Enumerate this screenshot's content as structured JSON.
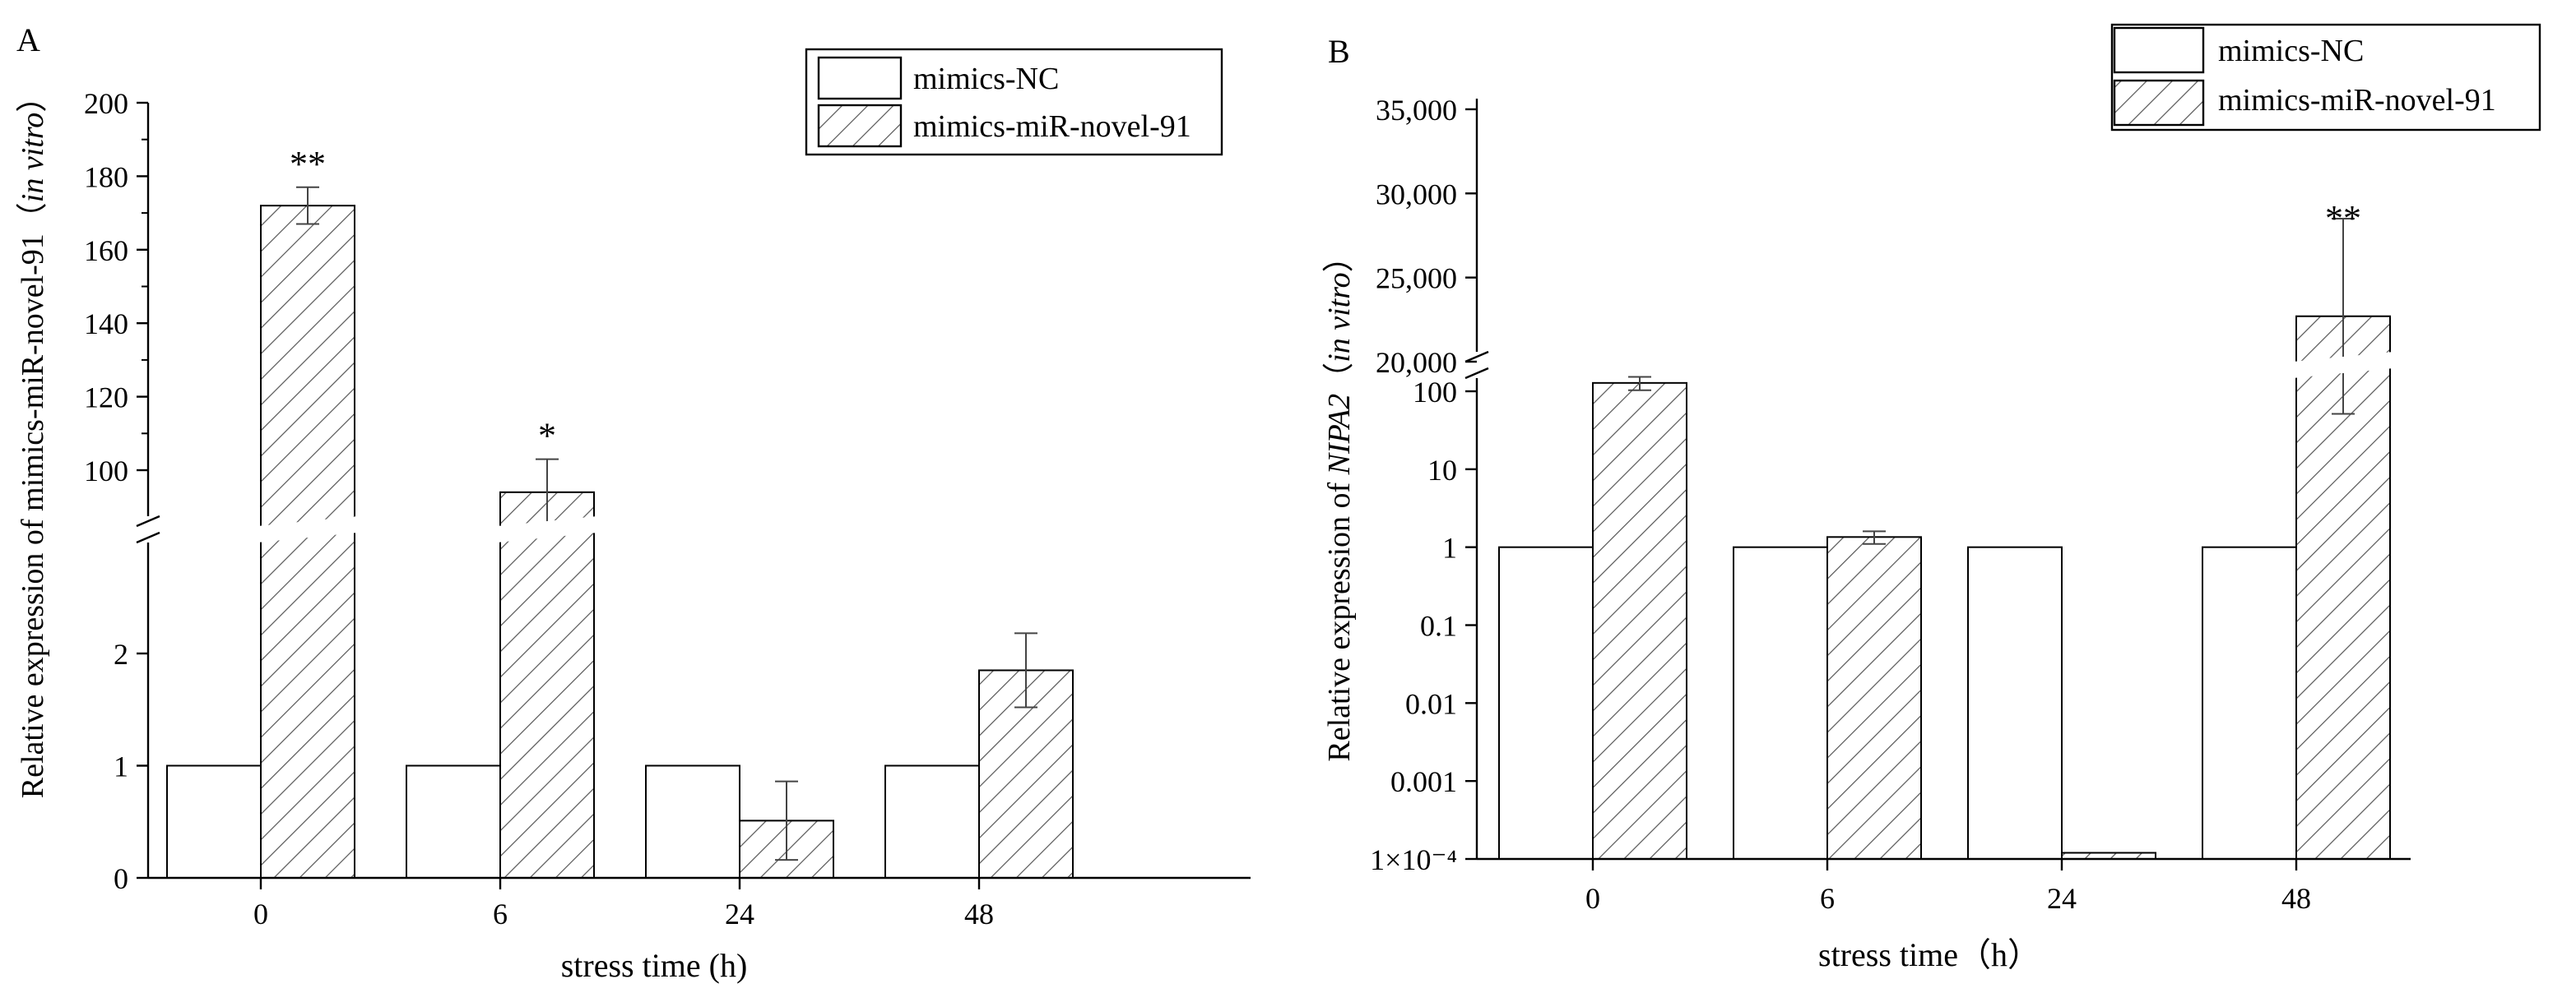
{
  "chart_data": [
    {
      "type": "bar",
      "panel_label": "A",
      "categories": [
        "0",
        "6",
        "24",
        "48"
      ],
      "xlabel": "stress time (h)",
      "ylabel_main": "Relative expression of mimics-miR-novel-91",
      "ylabel_suffix": "in vitro",
      "y_axis_break": true,
      "lower_ticks": [
        "0",
        "1",
        "2"
      ],
      "upper_ticks": [
        "100",
        "120",
        "140",
        "160",
        "180",
        "200"
      ],
      "legend_placement": "top-right",
      "series": [
        {
          "name": "mimics-NC",
          "pattern": "empty",
          "values": [
            1,
            1,
            1,
            1
          ],
          "errors": [
            0,
            0,
            0,
            0
          ]
        },
        {
          "name": "mimics-miR-novel-91",
          "pattern": "hatched",
          "values": [
            172,
            94,
            0.51,
            1.85
          ],
          "errors": [
            5,
            9,
            0.35,
            0.33
          ]
        }
      ],
      "significance": [
        {
          "category": "0",
          "series": "mimics-miR-novel-91",
          "label": "**"
        },
        {
          "category": "6",
          "series": "mimics-miR-novel-91",
          "label": "*"
        }
      ]
    },
    {
      "type": "bar",
      "panel_label": "B",
      "categories": [
        "0",
        "6",
        "24",
        "48"
      ],
      "xlabel": "stress time（h）",
      "ylabel_main": "Relative expression of ",
      "ylabel_gene": "NIPA2",
      "ylabel_suffix": "in vitro",
      "y_scale": "log",
      "y_axis_break": true,
      "lower_ticks": [
        "1×10⁻⁴",
        "0.001",
        "0.01",
        "0.1",
        "1",
        "10",
        "100"
      ],
      "upper_ticks": [
        "20,000",
        "25,000",
        "30,000",
        "35,000"
      ],
      "legend_placement": "top-right",
      "series": [
        {
          "name": "mimics-NC",
          "pattern": "empty",
          "values": [
            1,
            1,
            1,
            1
          ]
        },
        {
          "name": "mimics-miR-novel-91",
          "pattern": "hatched",
          "values": [
            128,
            1.35,
            0.00012,
            22700
          ],
          "errors": [
            25,
            0.25,
            0,
            5800
          ]
        }
      ],
      "significance": [
        {
          "category": "48",
          "series": "mimics-miR-novel-91",
          "label": "**"
        }
      ]
    }
  ]
}
